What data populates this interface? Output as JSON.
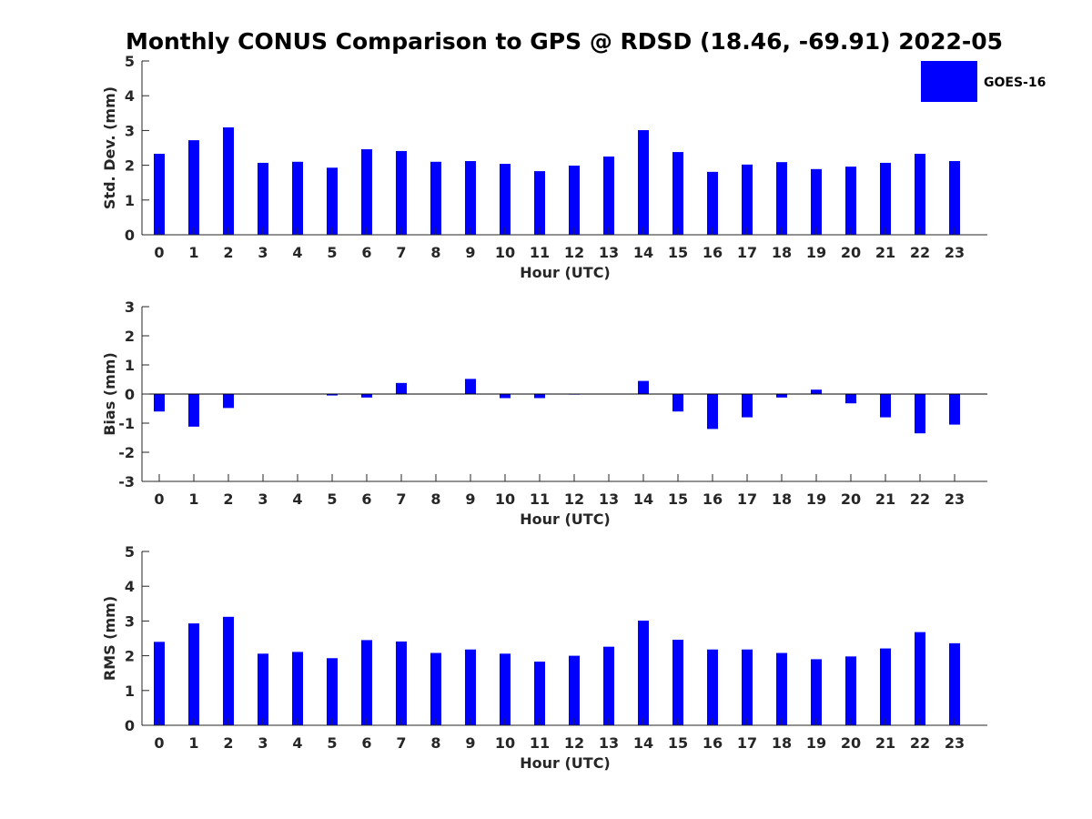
{
  "figure": {
    "title": "Monthly CONUS Comparison to GPS @ RDSD (18.46, -69.91) 2022-05",
    "legend": {
      "label": "GOES-16",
      "color": "#0000ff",
      "placement": "top-right"
    }
  },
  "chart_data": [
    {
      "type": "bar",
      "categories": [
        "0",
        "1",
        "2",
        "3",
        "4",
        "5",
        "6",
        "7",
        "8",
        "9",
        "10",
        "11",
        "12",
        "13",
        "14",
        "15",
        "16",
        "17",
        "18",
        "19",
        "20",
        "21",
        "22",
        "23"
      ],
      "series": [
        {
          "name": "GOES-16",
          "color": "#0000ff",
          "values": [
            2.33,
            2.72,
            3.09,
            2.07,
            2.1,
            1.93,
            2.46,
            2.41,
            2.1,
            2.12,
            2.04,
            1.83,
            1.99,
            2.25,
            3.01,
            2.38,
            1.81,
            2.02,
            2.09,
            1.89,
            1.96,
            2.07,
            2.33,
            2.12
          ]
        }
      ],
      "xlabel": "Hour (UTC)",
      "ylabel": "Std. Dev. (mm)",
      "ylim": [
        0,
        5
      ],
      "yticks": [
        0,
        1,
        2,
        3,
        4,
        5
      ],
      "grid": false
    },
    {
      "type": "bar",
      "categories": [
        "0",
        "1",
        "2",
        "3",
        "4",
        "5",
        "6",
        "7",
        "8",
        "9",
        "10",
        "11",
        "12",
        "13",
        "14",
        "15",
        "16",
        "17",
        "18",
        "19",
        "20",
        "21",
        "22",
        "23"
      ],
      "series": [
        {
          "name": "GOES-16",
          "color": "#0000ff",
          "values": [
            -0.6,
            -1.12,
            -0.48,
            0.0,
            0.0,
            -0.05,
            -0.12,
            0.38,
            0.0,
            0.52,
            -0.14,
            -0.14,
            -0.02,
            0.0,
            0.45,
            -0.6,
            -1.2,
            -0.8,
            -0.12,
            0.15,
            -0.32,
            -0.8,
            -1.35,
            -1.05
          ]
        }
      ],
      "xlabel": "Hour (UTC)",
      "ylabel": "Bias (mm)",
      "ylim": [
        -3,
        3
      ],
      "yticks": [
        -3,
        -2,
        -1,
        0,
        1,
        2,
        3
      ],
      "grid": false
    },
    {
      "type": "bar",
      "categories": [
        "0",
        "1",
        "2",
        "3",
        "4",
        "5",
        "6",
        "7",
        "8",
        "9",
        "10",
        "11",
        "12",
        "13",
        "14",
        "15",
        "16",
        "17",
        "18",
        "19",
        "20",
        "21",
        "22",
        "23"
      ],
      "series": [
        {
          "name": "GOES-16",
          "color": "#0000ff",
          "values": [
            2.4,
            2.93,
            3.12,
            2.06,
            2.11,
            1.93,
            2.45,
            2.41,
            2.08,
            2.18,
            2.06,
            1.83,
            2.0,
            2.26,
            3.01,
            2.46,
            2.18,
            2.18,
            2.08,
            1.9,
            1.98,
            2.21,
            2.68,
            2.36
          ]
        }
      ],
      "xlabel": "Hour (UTC)",
      "ylabel": "RMS (mm)",
      "ylim": [
        0,
        5
      ],
      "yticks": [
        0,
        1,
        2,
        3,
        4,
        5
      ],
      "grid": false
    }
  ]
}
